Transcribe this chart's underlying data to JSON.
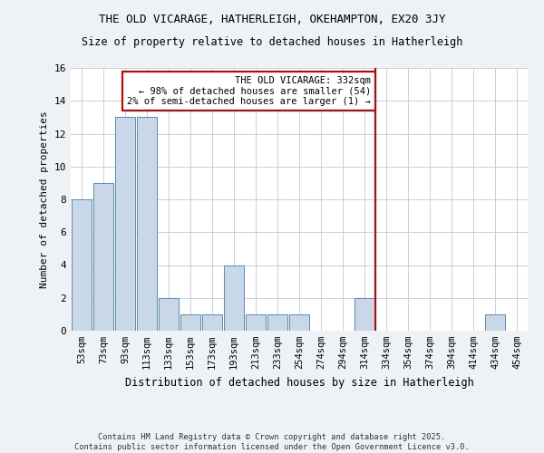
{
  "title1": "THE OLD VICARAGE, HATHERLEIGH, OKEHAMPTON, EX20 3JY",
  "title2": "Size of property relative to detached houses in Hatherleigh",
  "xlabel": "Distribution of detached houses by size in Hatherleigh",
  "ylabel": "Number of detached properties",
  "categories": [
    "53sqm",
    "73sqm",
    "93sqm",
    "113sqm",
    "133sqm",
    "153sqm",
    "173sqm",
    "193sqm",
    "213sqm",
    "233sqm",
    "254sqm",
    "274sqm",
    "294sqm",
    "314sqm",
    "334sqm",
    "354sqm",
    "374sqm",
    "394sqm",
    "414sqm",
    "434sqm",
    "454sqm"
  ],
  "values": [
    8,
    9,
    13,
    13,
    2,
    1,
    1,
    4,
    1,
    1,
    1,
    0,
    0,
    2,
    0,
    0,
    0,
    0,
    0,
    1,
    0
  ],
  "bar_color": "#c8d8e8",
  "bar_edge_color": "#5b8db8",
  "vline_color": "#cc0000",
  "annotation_title": "THE OLD VICARAGE: 332sqm",
  "annotation_line1": "← 98% of detached houses are smaller (54)",
  "annotation_line2": "2% of semi-detached houses are larger (1) →",
  "annotation_box_color": "#cc0000",
  "annotation_bg": "#ffffff",
  "ylim": [
    0,
    16
  ],
  "yticks": [
    0,
    2,
    4,
    6,
    8,
    10,
    12,
    14,
    16
  ],
  "footnote1": "Contains HM Land Registry data © Crown copyright and database right 2025.",
  "footnote2": "Contains public sector information licensed under the Open Government Licence v3.0.",
  "bg_color": "#eef2f6",
  "plot_bg_color": "#ffffff",
  "grid_color": "#c8d0d8"
}
